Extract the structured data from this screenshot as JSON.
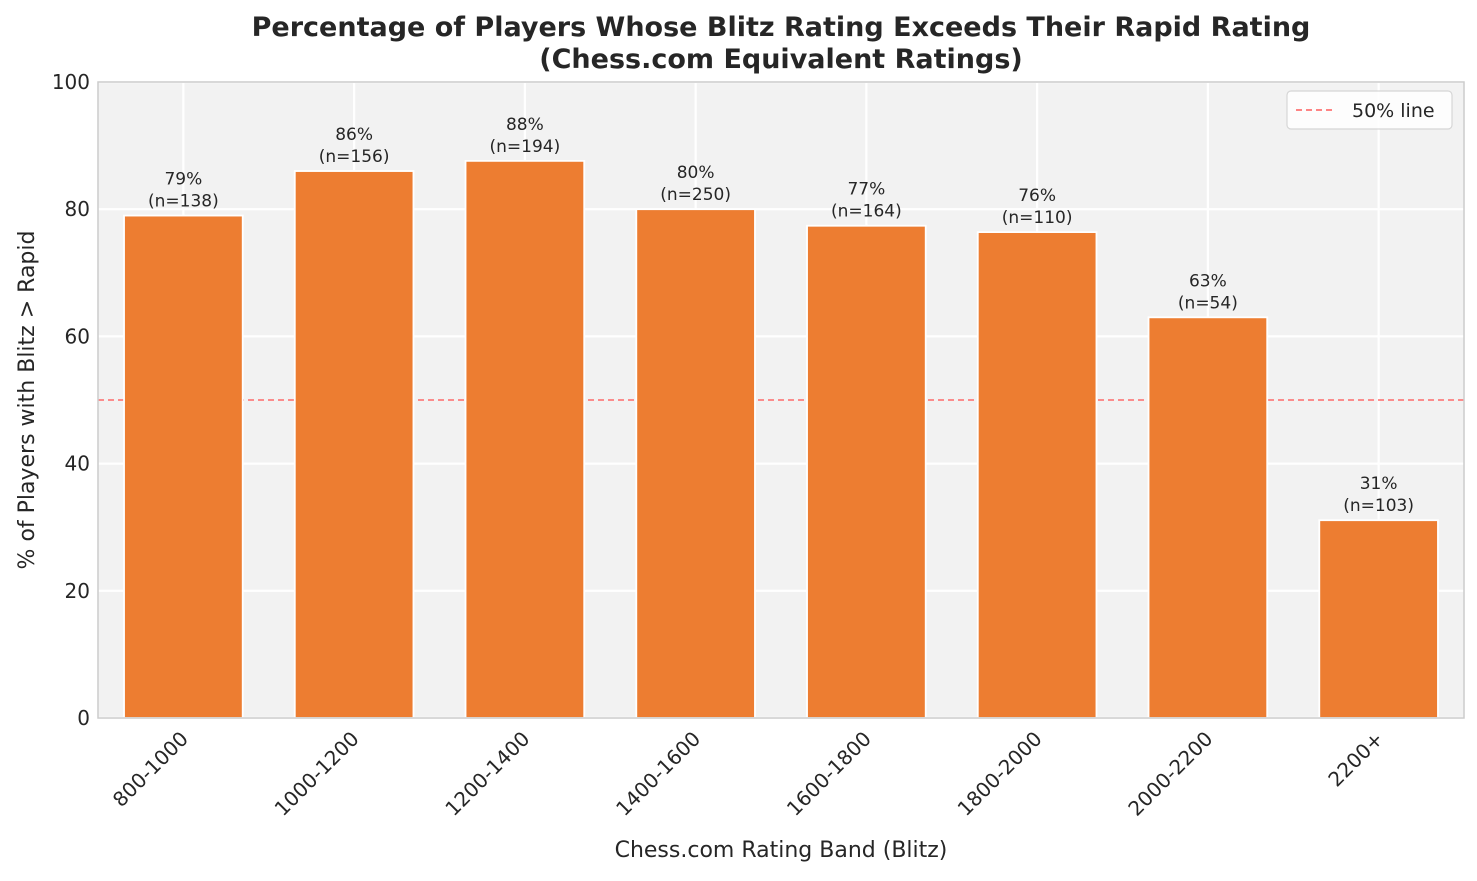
{
  "chart_data": {
    "type": "bar",
    "title_lines": [
      "Percentage of Players Whose Blitz Rating Exceeds Their Rapid Rating",
      "(Chess.com Equivalent Ratings)"
    ],
    "xlabel": "Chess.com Rating Band (Blitz)",
    "ylabel": "% of Players with Blitz > Rapid",
    "categories": [
      "800-1000",
      "1000-1200",
      "1200-1400",
      "1400-1600",
      "1600-1800",
      "1800-2000",
      "2000-2200",
      "2200+"
    ],
    "values": [
      79.0,
      86.0,
      87.6,
      80.0,
      77.4,
      76.4,
      63.0,
      31.1
    ],
    "bar_labels": [
      "79%",
      "86%",
      "88%",
      "80%",
      "77%",
      "76%",
      "63%",
      "31%"
    ],
    "sample_labels": [
      "(n=138)",
      "(n=156)",
      "(n=194)",
      "(n=250)",
      "(n=164)",
      "(n=110)",
      "(n=54)",
      "(n=103)"
    ],
    "ylim": [
      0,
      100
    ],
    "yticks": [
      0,
      20,
      40,
      60,
      80,
      100
    ],
    "grid": true,
    "reference_line": {
      "value": 50,
      "label": "50% line",
      "color": "#ff5c5c"
    },
    "legend_position": "top-right",
    "bar_color": "#ed7d31",
    "background_color": "#f2f2f2"
  }
}
